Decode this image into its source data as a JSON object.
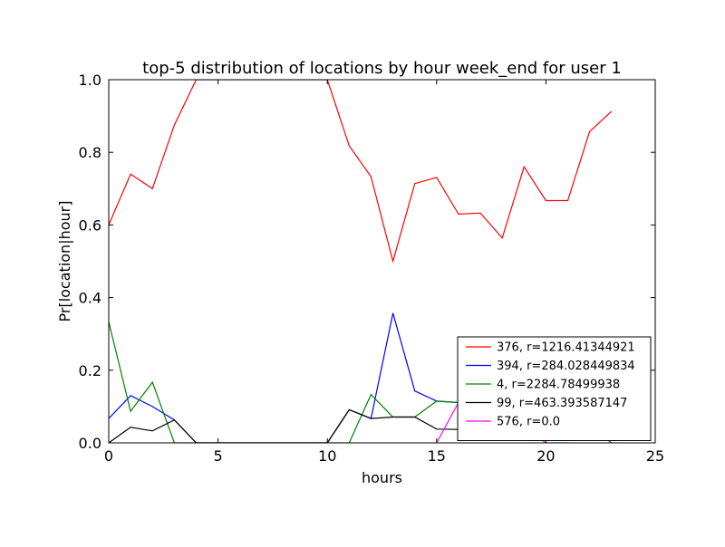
{
  "chart_data": {
    "type": "line",
    "title": "top-5 distribution of locations by hour week_end for user 1",
    "xlabel": "hours",
    "ylabel": "Pr[location|hour]",
    "xlim": [
      0,
      25
    ],
    "ylim": [
      0.0,
      1.0
    ],
    "xticks": [
      "0",
      "5",
      "10",
      "15",
      "20",
      "25"
    ],
    "yticks": [
      "0.0",
      "0.2",
      "0.4",
      "0.6",
      "0.8",
      "1.0"
    ],
    "xtick_values": [
      0,
      5,
      10,
      15,
      20,
      25
    ],
    "ytick_values": [
      0.0,
      0.2,
      0.4,
      0.6,
      0.8,
      1.0
    ],
    "grid": false,
    "legend_position": "lower-right",
    "x": [
      0,
      1,
      2,
      3,
      4,
      5,
      6,
      7,
      8,
      9,
      10,
      11,
      12,
      13,
      14,
      15,
      16,
      17,
      18,
      19,
      20,
      21,
      22,
      23
    ],
    "series": [
      {
        "name": "376, r=1216.41344921",
        "color": "#ff0000",
        "values": [
          0.6,
          0.74,
          0.7,
          0.875,
          1.0,
          1.0,
          1.0,
          1.0,
          1.0,
          1.0,
          1.0,
          0.818,
          0.733,
          0.5,
          0.714,
          0.731,
          0.63,
          0.633,
          0.564,
          0.76,
          0.667,
          0.667,
          0.857,
          0.913
        ]
      },
      {
        "name": "394, r=284.028449834",
        "color": "#0000ff",
        "values": [
          0.067,
          0.13,
          0.1,
          0.063,
          0.0,
          0.0,
          0.0,
          0.0,
          0.0,
          0.0,
          0.0,
          0.091,
          0.067,
          0.357,
          0.143,
          0.115,
          0.111,
          null,
          null,
          null,
          null,
          null,
          null,
          null
        ]
      },
      {
        "name": "4, r=2284.78499938",
        "color": "#008000",
        "values": [
          0.333,
          0.087,
          0.167,
          0.0,
          0.0,
          0.0,
          0.0,
          0.0,
          0.0,
          0.0,
          0.0,
          0.0,
          0.133,
          0.071,
          0.071,
          0.115,
          0.111,
          null,
          null,
          null,
          null,
          null,
          0.043,
          0.0
        ]
      },
      {
        "name": "99, r=463.393587147",
        "color": "#000000",
        "values": [
          0.0,
          0.043,
          0.033,
          0.063,
          0.0,
          0.0,
          0.0,
          0.0,
          0.0,
          0.0,
          0.0,
          0.091,
          0.067,
          0.071,
          0.071,
          0.038,
          0.037,
          null,
          null,
          null,
          null,
          null,
          null,
          null
        ]
      },
      {
        "name": "576, r=0.0",
        "color": "#ff00ff",
        "values": [
          null,
          null,
          null,
          null,
          null,
          null,
          null,
          null,
          null,
          null,
          null,
          null,
          null,
          null,
          null,
          0.0,
          0.111,
          null,
          null,
          0.04,
          0.0,
          0.0,
          null,
          null
        ]
      }
    ]
  }
}
